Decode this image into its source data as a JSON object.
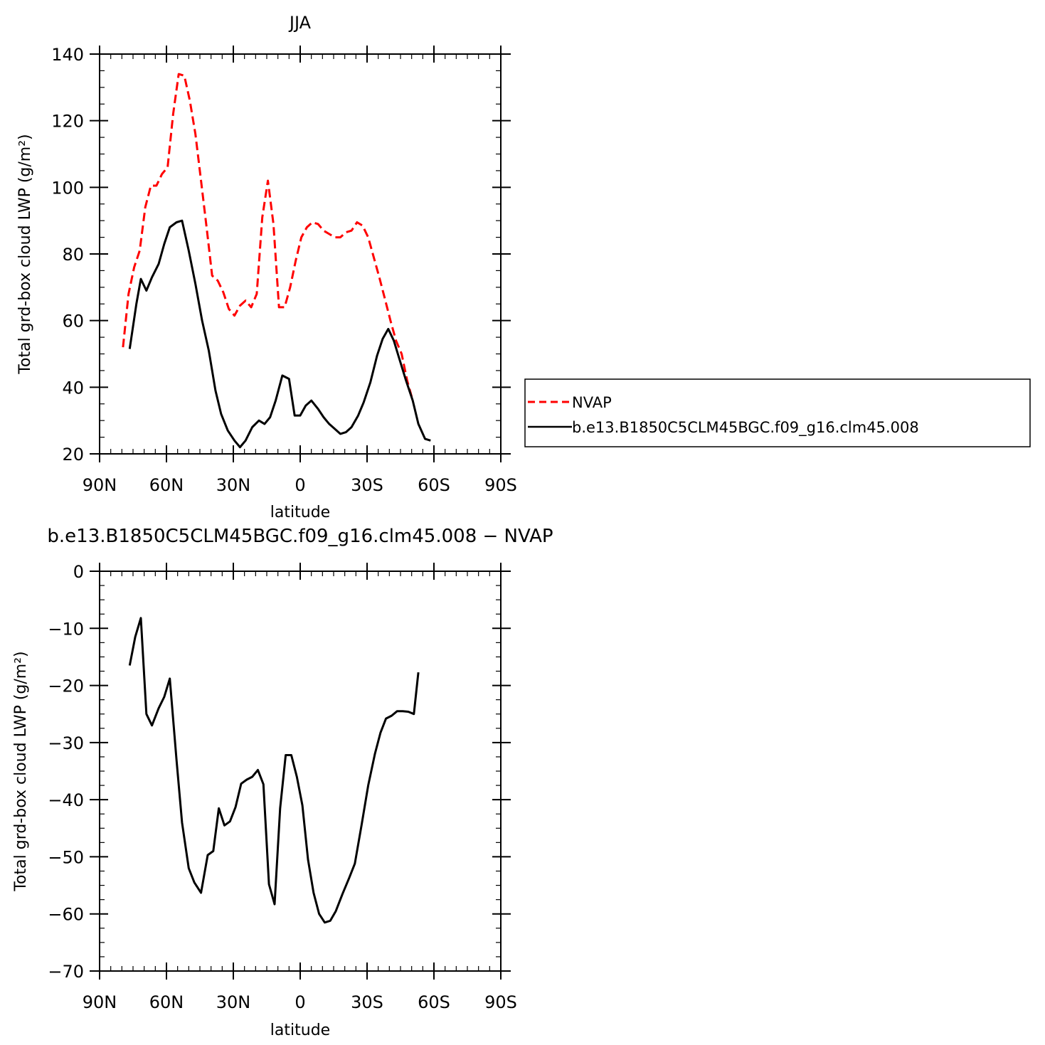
{
  "chart_data": [
    {
      "type": "line",
      "title": "JJA",
      "xlabel": "latitude",
      "ylabel": "Total grd-box cloud LWP (g/m²)",
      "xlim": [
        90,
        -90
      ],
      "ylim": [
        20,
        140
      ],
      "xticks": [
        {
          "value": 90,
          "label": "90N"
        },
        {
          "value": 60,
          "label": "60N"
        },
        {
          "value": 30,
          "label": "30N"
        },
        {
          "value": 0,
          "label": "0"
        },
        {
          "value": -30,
          "label": "30S"
        },
        {
          "value": -60,
          "label": "60S"
        },
        {
          "value": -90,
          "label": "90S"
        }
      ],
      "yticks": [
        20,
        40,
        60,
        80,
        100,
        120,
        140
      ],
      "legend_position": "right",
      "series": [
        {
          "name": "NVAP",
          "color": "#ff0000",
          "dash": "dashed",
          "points": [
            [
              79.5,
              52
            ],
            [
              77.0,
              68
            ],
            [
              74.5,
              76
            ],
            [
              72.0,
              81
            ],
            [
              69.5,
              94
            ],
            [
              67.0,
              100.5
            ],
            [
              64.5,
              100.5
            ],
            [
              62.0,
              104
            ],
            [
              59.5,
              106
            ],
            [
              57.0,
              122
            ],
            [
              54.5,
              134
            ],
            [
              52.0,
              133.5
            ],
            [
              49.5,
              126
            ],
            [
              47.0,
              116
            ],
            [
              44.5,
              102
            ],
            [
              42.0,
              88
            ],
            [
              39.5,
              73.5
            ],
            [
              37.0,
              72
            ],
            [
              34.5,
              68.5
            ],
            [
              32.0,
              63.5
            ],
            [
              29.5,
              61.5
            ],
            [
              27.0,
              64.5
            ],
            [
              24.5,
              66
            ],
            [
              22.0,
              64
            ],
            [
              19.5,
              68
            ],
            [
              17.0,
              91
            ],
            [
              14.5,
              102
            ],
            [
              12.0,
              89
            ],
            [
              9.5,
              64
            ],
            [
              7.0,
              64
            ],
            [
              4.5,
              70
            ],
            [
              2.0,
              78
            ],
            [
              -0.5,
              85
            ],
            [
              -3.0,
              88
            ],
            [
              -5.5,
              89.5
            ],
            [
              -8.0,
              89
            ],
            [
              -10.5,
              87
            ],
            [
              -13.0,
              86
            ],
            [
              -15.5,
              85
            ],
            [
              -18.0,
              85
            ],
            [
              -20.5,
              86.5
            ],
            [
              -23.0,
              87
            ],
            [
              -25.5,
              89.5
            ],
            [
              -28.0,
              88.5
            ],
            [
              -30.5,
              85
            ],
            [
              -33.0,
              79
            ],
            [
              -35.5,
              73
            ],
            [
              -38.0,
              66.5
            ],
            [
              -40.5,
              60
            ],
            [
              -43.0,
              54
            ],
            [
              -45.5,
              50
            ],
            [
              -48.0,
              42
            ],
            [
              -50.5,
              36
            ]
          ]
        },
        {
          "name": "b.e13.B1850C5CLM45BGC.f09_g16.clm45.008",
          "color": "#000000",
          "dash": "solid",
          "points": [
            [
              76.5,
              51.5
            ],
            [
              73.5,
              65
            ],
            [
              71.5,
              72.5
            ],
            [
              69.0,
              69
            ],
            [
              66.5,
              73
            ],
            [
              63.5,
              77
            ],
            [
              61.0,
              83
            ],
            [
              58.5,
              88
            ],
            [
              55.5,
              89.5
            ],
            [
              53.0,
              90
            ],
            [
              50.0,
              81
            ],
            [
              47.0,
              71
            ],
            [
              44.0,
              60
            ],
            [
              41.0,
              51
            ],
            [
              38.0,
              39
            ],
            [
              35.5,
              32
            ],
            [
              32.5,
              27
            ],
            [
              29.5,
              24
            ],
            [
              27.0,
              22
            ],
            [
              24.5,
              24
            ],
            [
              21.5,
              28
            ],
            [
              18.5,
              30
            ],
            [
              16.0,
              29
            ],
            [
              13.5,
              31
            ],
            [
              11.0,
              36
            ],
            [
              8.0,
              43.5
            ],
            [
              5.0,
              42.5
            ],
            [
              2.5,
              31.5
            ],
            [
              0.0,
              31.5
            ],
            [
              -2.5,
              34.5
            ],
            [
              -5.0,
              36
            ],
            [
              -8.0,
              33.5
            ],
            [
              -10.5,
              31
            ],
            [
              -13.0,
              29
            ],
            [
              -15.5,
              27.5
            ],
            [
              -18.0,
              26
            ],
            [
              -20.5,
              26.5
            ],
            [
              -23.0,
              28
            ],
            [
              -26.0,
              31.5
            ],
            [
              -28.5,
              35.5
            ],
            [
              -31.5,
              41.5
            ],
            [
              -34.5,
              49.5
            ],
            [
              -37.0,
              54.5
            ],
            [
              -39.5,
              57.5
            ],
            [
              -42.0,
              54
            ],
            [
              -44.5,
              48.5
            ],
            [
              -47.5,
              42
            ],
            [
              -50.5,
              36
            ],
            [
              -53.0,
              29
            ],
            [
              -56.0,
              24.5
            ],
            [
              -58.5,
              24
            ]
          ]
        }
      ]
    },
    {
      "type": "line",
      "title": "b.e13.B1850C5CLM45BGC.f09_g16.clm45.008 − NVAP",
      "xlabel": "latitude",
      "ylabel": "Total grd-box cloud LWP (g/m²)",
      "xlim": [
        90,
        -90
      ],
      "ylim": [
        -70,
        0
      ],
      "xticks": [
        {
          "value": 90,
          "label": "90N"
        },
        {
          "value": 60,
          "label": "60N"
        },
        {
          "value": 30,
          "label": "30N"
        },
        {
          "value": 0,
          "label": "0"
        },
        {
          "value": -30,
          "label": "30S"
        },
        {
          "value": -60,
          "label": "60S"
        },
        {
          "value": -90,
          "label": "90S"
        }
      ],
      "yticks": [
        0,
        -10,
        -20,
        -30,
        -40,
        -50,
        -60,
        -70
      ],
      "series": [
        {
          "color": "#000000",
          "dash": "solid",
          "points": [
            [
              76.5,
              -16.5
            ],
            [
              74.0,
              -11.5
            ],
            [
              71.5,
              -8.2
            ],
            [
              69.0,
              -25
            ],
            [
              66.5,
              -27
            ],
            [
              63.5,
              -24
            ],
            [
              61.0,
              -22
            ],
            [
              58.5,
              -18.8
            ],
            [
              55.5,
              -33
            ],
            [
              53.0,
              -44
            ],
            [
              50.0,
              -52
            ],
            [
              47.5,
              -54.5
            ],
            [
              44.5,
              -56.3
            ],
            [
              41.5,
              -49.7
            ],
            [
              39.0,
              -49
            ],
            [
              36.5,
              -41.5
            ],
            [
              34.0,
              -44.5
            ],
            [
              31.5,
              -43.8
            ],
            [
              29.0,
              -41.3
            ],
            [
              26.5,
              -37.2
            ],
            [
              24.0,
              -36.5
            ],
            [
              21.5,
              -36
            ],
            [
              19.0,
              -34.8
            ],
            [
              16.5,
              -37.3
            ],
            [
              14.0,
              -54.8
            ],
            [
              11.5,
              -58.3
            ],
            [
              9.0,
              -41.5
            ],
            [
              6.5,
              -32.2
            ],
            [
              4.0,
              -32.2
            ],
            [
              1.5,
              -36
            ],
            [
              -1.0,
              -41
            ],
            [
              -3.5,
              -50.5
            ],
            [
              -6.0,
              -56.3
            ],
            [
              -8.5,
              -60
            ],
            [
              -11.0,
              -61.5
            ],
            [
              -13.5,
              -61.2
            ],
            [
              -16.0,
              -59.5
            ],
            [
              -19.0,
              -56.5
            ],
            [
              -22.0,
              -53.7
            ],
            [
              -24.5,
              -51.2
            ],
            [
              -27.5,
              -44.5
            ],
            [
              -30.5,
              -37.5
            ],
            [
              -33.5,
              -32
            ],
            [
              -36.0,
              -28.3
            ],
            [
              -38.5,
              -25.8
            ],
            [
              -41.0,
              -25.3
            ],
            [
              -43.5,
              -24.5
            ],
            [
              -46.0,
              -24.5
            ],
            [
              -48.5,
              -24.6
            ],
            [
              -51.0,
              -25
            ],
            [
              -53.0,
              -17.7
            ]
          ]
        }
      ]
    }
  ]
}
